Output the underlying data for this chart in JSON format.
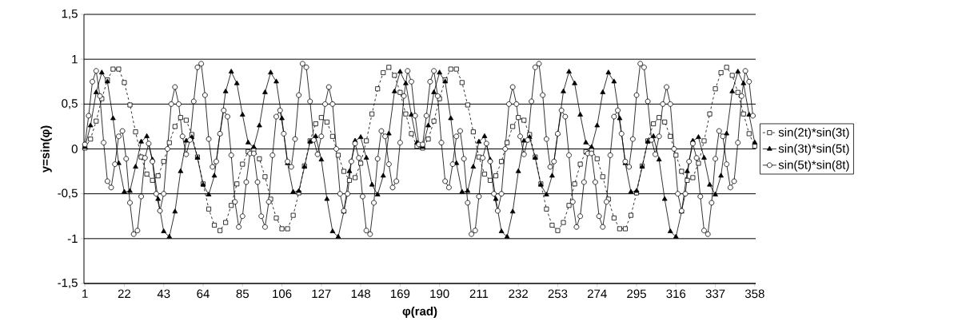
{
  "chart_data": {
    "type": "line",
    "xlabel": "φ(rad)",
    "ylabel": "y=sin(φ)",
    "xlim": [
      0.5,
      358.5
    ],
    "xticks": [
      1,
      22,
      43,
      64,
      85,
      106,
      127,
      148,
      169,
      190,
      211,
      232,
      253,
      274,
      295,
      316,
      337,
      358
    ],
    "ylim": [
      -1.5,
      1.5
    ],
    "yticks": [
      {
        "value": -1.5,
        "label": "-1,5"
      },
      -1,
      {
        "value": -0.5,
        "label": "-0,5"
      },
      0,
      {
        "value": 0.5,
        "label": "0,5"
      },
      1,
      {
        "value": 1.5,
        "label": "1,5"
      }
    ],
    "grid": "y",
    "legend": "right",
    "series": [
      {
        "name": "sin(2t)*sin(3t)",
        "color": "#000000",
        "marker": "square",
        "line_style": "dashed",
        "x": [
          1,
          4,
          7,
          10,
          13,
          16,
          19,
          22,
          25,
          28,
          31,
          34,
          37,
          40,
          43,
          46,
          49,
          52,
          55,
          58,
          61,
          64,
          67,
          70,
          73,
          76,
          79,
          82,
          85,
          88,
          91,
          94,
          97,
          100,
          103,
          106,
          109,
          112,
          115,
          118,
          121,
          124,
          127,
          130,
          133,
          136,
          139,
          142,
          145,
          148,
          151,
          154,
          157,
          160,
          163,
          166,
          169,
          172,
          175,
          178,
          181,
          184,
          187,
          190,
          193,
          196,
          199,
          202,
          205,
          208,
          211,
          214,
          217,
          220,
          223,
          226,
          229,
          232,
          235,
          238,
          241,
          244,
          247,
          250,
          253,
          256,
          259,
          262,
          265,
          268,
          271,
          274,
          277,
          280,
          283,
          286,
          289,
          292,
          295,
          298,
          301,
          304,
          307,
          310,
          313,
          316,
          319,
          322,
          325,
          328,
          331,
          334,
          337,
          340,
          343,
          346,
          349,
          352,
          355,
          358
        ],
        "values": [
          0.01,
          0.11,
          0.31,
          0.56,
          0.77,
          0.89,
          0.89,
          0.74,
          0.49,
          0.19,
          -0.09,
          -0.28,
          -0.35,
          -0.3,
          -0.14,
          0.07,
          0.25,
          0.35,
          0.32,
          0.16,
          -0.09,
          -0.39,
          -0.67,
          -0.85,
          -0.91,
          -0.82,
          -0.63,
          -0.39,
          -0.17,
          -0.03,
          -0.01,
          -0.11,
          -0.31,
          -0.56,
          -0.77,
          -0.89,
          -0.89,
          -0.74,
          -0.49,
          -0.19,
          0.09,
          0.28,
          0.35,
          0.3,
          0.14,
          -0.07,
          -0.25,
          -0.35,
          -0.32,
          -0.16,
          0.09,
          0.39,
          0.67,
          0.85,
          0.91,
          0.82,
          0.63,
          0.39,
          0.17,
          0.03,
          0.01,
          0.11,
          0.31,
          0.56,
          0.77,
          0.89,
          0.89,
          0.74,
          0.49,
          0.19,
          -0.09,
          -0.28,
          -0.35,
          -0.3,
          -0.14,
          0.07,
          0.25,
          0.35,
          0.32,
          0.16,
          -0.09,
          -0.39,
          -0.67,
          -0.85,
          -0.91,
          -0.82,
          -0.63,
          -0.39,
          -0.17,
          -0.03,
          -0.01,
          -0.11,
          -0.31,
          -0.56,
          -0.77,
          -0.89,
          -0.89,
          -0.74,
          -0.49,
          -0.19,
          0.09,
          0.28,
          0.35,
          0.3,
          0.14,
          -0.07,
          -0.25,
          -0.35,
          -0.32,
          -0.16,
          0.09,
          0.39,
          0.67,
          0.85,
          0.91,
          0.82,
          0.63,
          0.39,
          0.17,
          0.03
        ]
      },
      {
        "name": "sin(3t)*sin(5t)",
        "color": "#000000",
        "marker": "triangle",
        "line_style": "solid",
        "x": [
          1,
          4,
          7,
          10,
          13,
          16,
          19,
          22,
          25,
          28,
          31,
          34,
          37,
          40,
          43,
          46,
          49,
          52,
          55,
          58,
          61,
          64,
          67,
          70,
          73,
          76,
          79,
          82,
          85,
          88,
          91,
          94,
          97,
          100,
          103,
          106,
          109,
          112,
          115,
          118,
          121,
          124,
          127,
          130,
          133,
          136,
          139,
          142,
          145,
          148,
          151,
          154,
          157,
          160,
          163,
          166,
          169,
          172,
          175,
          178,
          181,
          184,
          187,
          190,
          193,
          196,
          199,
          202,
          205,
          208,
          211,
          214,
          217,
          220,
          223,
          226,
          229,
          232,
          235,
          238,
          241,
          244,
          247,
          250,
          253,
          256,
          259,
          262,
          265,
          268,
          271,
          274,
          277,
          280,
          283,
          286,
          289,
          292,
          295,
          298,
          301,
          304,
          307,
          310,
          313,
          316,
          319,
          322,
          325,
          328,
          331,
          334,
          337,
          340,
          343,
          346,
          349,
          352,
          355,
          358
        ],
        "values": [
          0.02,
          0.26,
          0.63,
          0.85,
          0.75,
          0.34,
          -0.16,
          -0.48,
          -0.47,
          -0.2,
          0.08,
          0.14,
          -0.12,
          -0.56,
          -0.92,
          -0.98,
          -0.7,
          -0.25,
          0.09,
          0.13,
          -0.1,
          -0.4,
          -0.51,
          -0.3,
          0.17,
          0.64,
          0.86,
          0.73,
          0.38,
          0.07,
          0.02,
          0.26,
          0.63,
          0.85,
          0.75,
          0.34,
          -0.16,
          -0.48,
          -0.47,
          -0.2,
          0.08,
          0.14,
          -0.12,
          -0.56,
          -0.92,
          -0.98,
          -0.7,
          -0.25,
          0.09,
          0.13,
          -0.1,
          -0.4,
          -0.51,
          -0.3,
          0.17,
          0.64,
          0.86,
          0.73,
          0.38,
          0.07,
          0.02,
          0.26,
          0.63,
          0.85,
          0.75,
          0.34,
          -0.16,
          -0.48,
          -0.47,
          -0.2,
          0.08,
          0.14,
          -0.12,
          -0.56,
          -0.92,
          -0.98,
          -0.7,
          -0.25,
          0.09,
          0.13,
          -0.1,
          -0.4,
          -0.51,
          -0.3,
          0.17,
          0.64,
          0.86,
          0.73,
          0.38,
          0.07,
          0.02,
          0.26,
          0.63,
          0.85,
          0.75,
          0.34,
          -0.16,
          -0.48,
          -0.47,
          -0.2,
          0.08,
          0.14,
          -0.12,
          -0.56,
          -0.92,
          -0.98,
          -0.7,
          -0.25,
          0.09,
          0.13,
          -0.1,
          -0.4,
          -0.51,
          -0.3,
          0.17,
          0.64,
          0.86,
          0.73,
          0.38,
          0.07
        ]
      },
      {
        "name": "sin(5t)*sin(8t)",
        "color": "#000000",
        "marker": "circle",
        "line_style": "solid",
        "x": [
          1,
          3,
          5,
          7,
          9,
          11,
          13,
          15,
          17,
          19,
          21,
          23,
          25,
          27,
          29,
          31,
          33,
          35,
          37,
          39,
          41,
          43,
          45,
          47,
          49,
          51,
          53,
          55,
          57,
          59,
          61,
          63,
          65,
          67,
          69,
          71,
          73,
          75,
          77,
          79,
          81,
          83,
          85,
          87,
          89,
          91,
          93,
          95,
          97,
          99,
          101,
          103,
          105,
          107,
          109,
          111,
          113,
          115,
          117,
          119,
          121,
          123,
          125,
          127,
          129,
          131,
          133,
          135,
          137,
          139,
          141,
          143,
          145,
          147,
          149,
          151,
          153,
          155,
          157,
          159,
          161,
          163,
          165,
          167,
          169,
          171,
          173,
          175,
          177,
          179,
          181,
          183,
          185,
          187,
          189,
          191,
          193,
          195,
          197,
          199,
          201,
          203,
          205,
          207,
          209,
          211,
          213,
          215,
          217,
          219,
          221,
          223,
          225,
          227,
          229,
          231,
          233,
          235,
          237,
          239,
          241,
          243,
          245,
          247,
          249,
          251,
          253,
          255,
          257,
          259,
          261,
          263,
          265,
          267,
          269,
          271,
          273,
          275,
          277,
          279,
          281,
          283,
          285,
          287,
          289,
          291,
          293,
          295,
          297,
          299,
          301,
          303,
          305,
          307,
          309,
          311,
          313,
          315,
          317,
          319,
          321,
          323,
          325,
          327,
          329,
          331,
          333,
          335,
          337,
          339,
          341,
          343,
          345,
          347,
          349,
          351,
          353,
          355,
          357
        ],
        "values": [
          0.05,
          0.37,
          0.75,
          0.87,
          0.59,
          0.07,
          -0.36,
          -0.43,
          -0.17,
          0.14,
          0.2,
          -0.11,
          -0.6,
          -0.95,
          -0.91,
          -0.53,
          -0.1,
          0.06,
          -0.14,
          -0.5,
          -0.69,
          -0.5,
          0,
          0.5,
          0.69,
          0.5,
          0.14,
          -0.06,
          0.1,
          0.53,
          0.91,
          0.95,
          0.6,
          0.11,
          -0.2,
          -0.14,
          0.17,
          0.43,
          0.36,
          -0.07,
          -0.59,
          -0.87,
          -0.75,
          -0.37,
          -0.05,
          -0.05,
          -0.37,
          -0.75,
          -0.87,
          -0.59,
          -0.07,
          0.36,
          0.43,
          0.17,
          -0.14,
          -0.2,
          0.11,
          0.6,
          0.95,
          0.91,
          0.53,
          0.1,
          -0.06,
          0.14,
          0.5,
          0.69,
          0.5,
          0,
          -0.5,
          -0.69,
          -0.5,
          -0.14,
          0.06,
          -0.1,
          -0.53,
          -0.91,
          -0.95,
          -0.6,
          -0.11,
          0.2,
          0.14,
          -0.17,
          -0.43,
          -0.36,
          0.07,
          0.59,
          0.87,
          0.75,
          0.37,
          0.05,
          0.05,
          0.37,
          0.75,
          0.87,
          0.59,
          0.07,
          -0.36,
          -0.43,
          -0.17,
          0.14,
          0.2,
          -0.11,
          -0.6,
          -0.95,
          -0.91,
          -0.53,
          -0.1,
          0.06,
          -0.14,
          -0.5,
          -0.69,
          -0.5,
          0,
          0.5,
          0.69,
          0.5,
          0.14,
          -0.06,
          0.1,
          0.53,
          0.91,
          0.95,
          0.6,
          0.11,
          -0.2,
          -0.14,
          0.17,
          0.43,
          0.36,
          -0.07,
          -0.59,
          -0.87,
          -0.75,
          -0.37,
          -0.05,
          -0.05,
          -0.37,
          -0.75,
          -0.87,
          -0.59,
          -0.07,
          0.36,
          0.43,
          0.17,
          -0.14,
          -0.2,
          0.11,
          0.6,
          0.95,
          0.91,
          0.53,
          0.1,
          -0.06,
          0.14,
          0.5,
          0.69,
          0.5,
          0,
          -0.5,
          -0.69,
          -0.5,
          -0.14,
          0.06,
          -0.1,
          -0.53,
          -0.91,
          -0.95,
          -0.6,
          -0.11,
          0.2,
          0.14,
          -0.17,
          -0.43,
          -0.36,
          0.07,
          0.59,
          0.87,
          0.75,
          0.37
        ]
      }
    ]
  }
}
